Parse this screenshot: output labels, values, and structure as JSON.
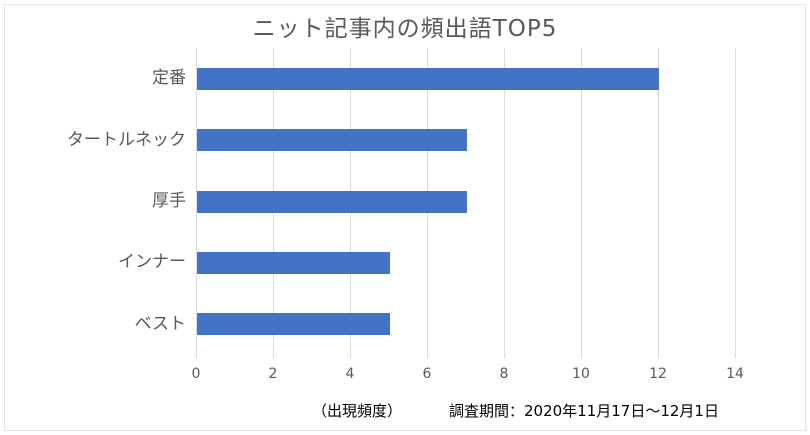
{
  "chart_data": {
    "type": "bar",
    "orientation": "horizontal",
    "title": "ニット記事内の頻出語TOP5",
    "categories": [
      "定番",
      "タートルネック",
      "厚手",
      "インナー",
      "ベスト"
    ],
    "values": [
      12,
      7,
      7,
      5,
      5
    ],
    "xlabel": "",
    "ylabel": "",
    "xlim": [
      0,
      14
    ],
    "xticks": [
      0,
      2,
      4,
      6,
      8,
      10,
      12,
      14
    ],
    "grid": "vertical-gridlines-on",
    "legend": "none",
    "data_labels": "none",
    "colors": {
      "bar": "#4472C4",
      "gridline": "#D9D9D9",
      "axis_text": "#595959",
      "title_text": "#595959",
      "footnote_text": "#000000",
      "frame_border": "#E3E3E3",
      "background": "#FFFFFF"
    }
  },
  "footnotes": {
    "unit_label": "（出現頻度）",
    "survey_period": "調査期間：2020年11月17日～12月1日"
  }
}
